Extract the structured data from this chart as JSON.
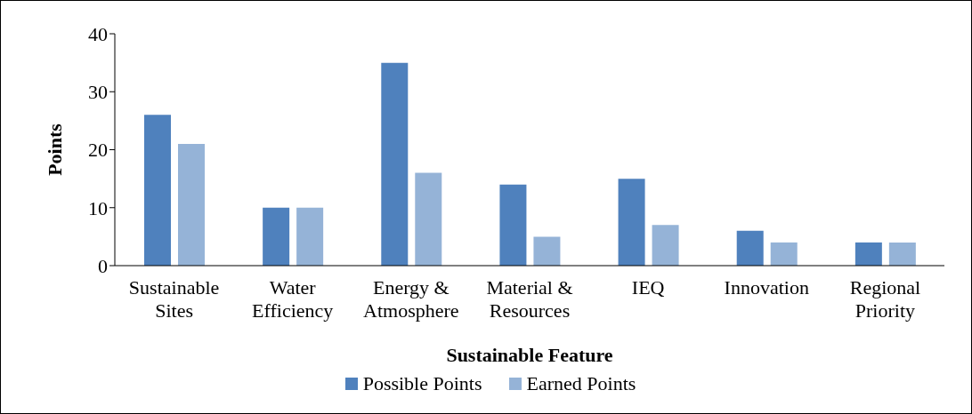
{
  "chart_data": {
    "type": "bar",
    "xlabel": "Sustainable Feature",
    "ylabel": "Points",
    "categories": [
      "Sustainable Sites",
      "Water Efficiency",
      "Energy & Atmosphere",
      "Material & Resources",
      "IEQ",
      "Innovation",
      "Regional Priority"
    ],
    "series": [
      {
        "name": "Possible Points",
        "color": "#4f81bd",
        "values": [
          26,
          10,
          35,
          14,
          15,
          6,
          4
        ]
      },
      {
        "name": "Earned Points",
        "color": "#95b3d7",
        "values": [
          21,
          10,
          16,
          5,
          7,
          4,
          4
        ]
      }
    ],
    "ylim": [
      0,
      40
    ],
    "yticks": [
      0,
      10,
      20,
      30,
      40
    ],
    "grid": false,
    "legend": "bottom"
  }
}
